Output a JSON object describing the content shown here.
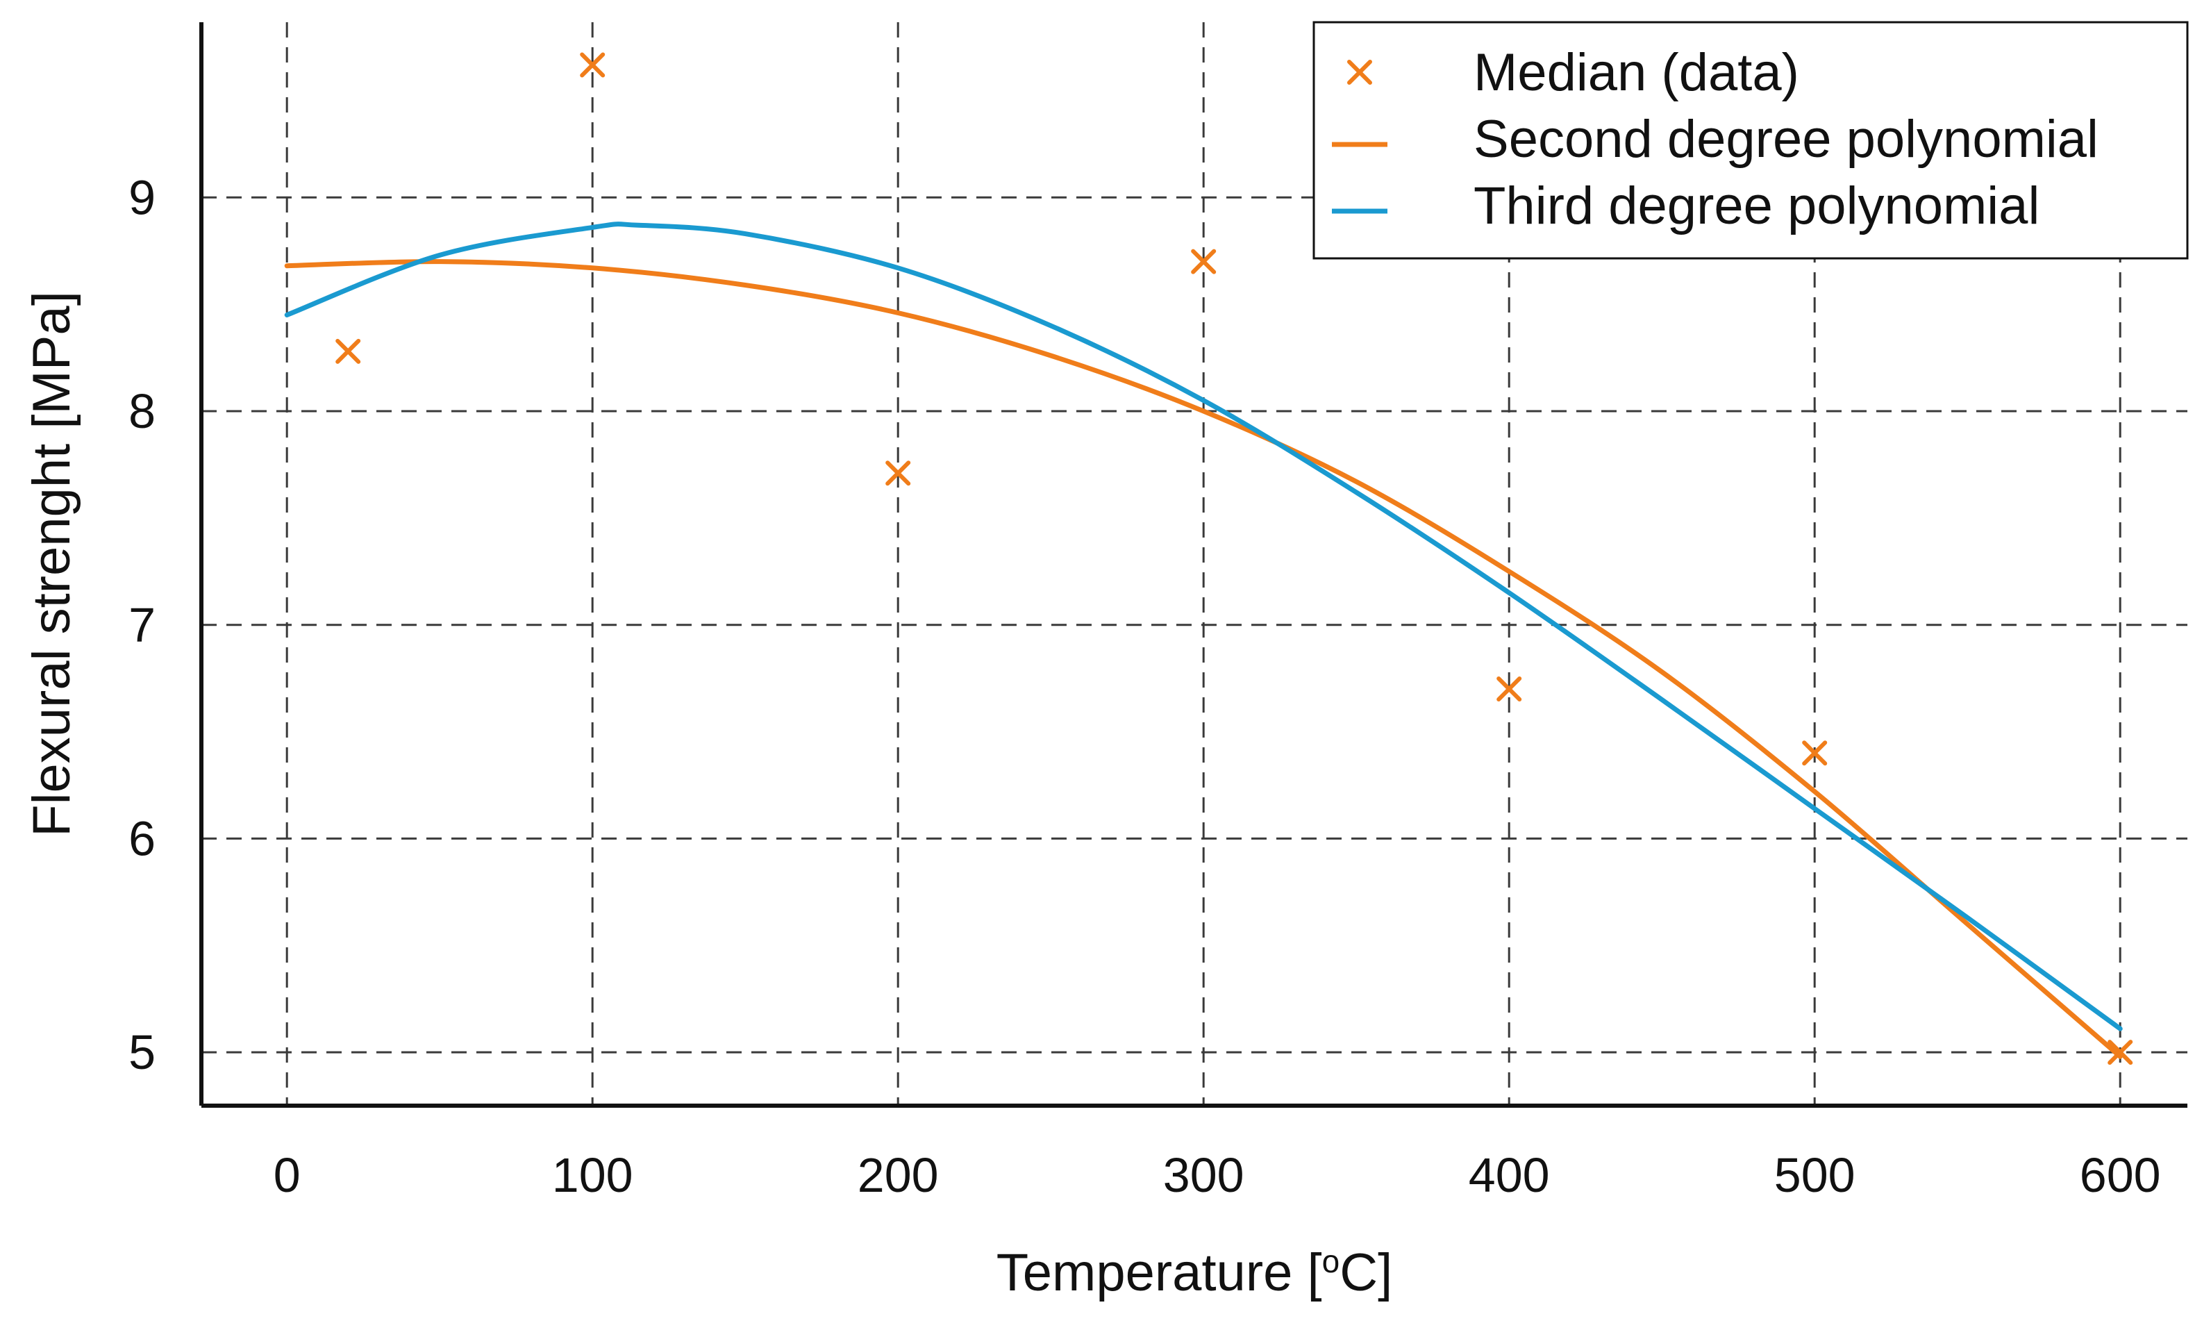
{
  "chart_data": {
    "type": "scatter",
    "xlabel": "Temperature [",
    "xlabel_sup": "o",
    "xlabel_end": "C]",
    "ylabel": "Flexural strenght [MPa]",
    "xlim": [
      -28,
      622
    ],
    "ylim": [
      4.75,
      9.82
    ],
    "xticks": [
      0,
      100,
      200,
      300,
      400,
      500,
      600
    ],
    "yticks": [
      5,
      6,
      7,
      8,
      9
    ],
    "grid": true,
    "legend_position": "top-right",
    "colors": {
      "orange": "#f07d1a",
      "blue": "#1a9ad0"
    },
    "series": [
      {
        "name": "Median (data)",
        "kind": "scatter",
        "color": "#f07d1a",
        "x": [
          20,
          100,
          200,
          300,
          400,
          500,
          600
        ],
        "y": [
          8.28,
          9.62,
          7.71,
          8.7,
          6.7,
          6.4,
          5.0
        ]
      },
      {
        "name": "Second degree polynomial",
        "kind": "line",
        "color": "#f07d1a",
        "x": [
          0,
          50,
          100,
          150,
          200,
          250,
          300,
          350,
          400,
          450,
          500,
          550,
          600
        ],
        "y": [
          8.68,
          8.7,
          8.67,
          8.59,
          8.46,
          8.26,
          8.0,
          7.67,
          7.25,
          6.78,
          6.22,
          5.6,
          4.98
        ]
      },
      {
        "name": "Third degree polynomial",
        "kind": "line",
        "color": "#1a9ad0",
        "x": [
          0,
          50,
          100,
          115,
          150,
          200,
          250,
          300,
          350,
          400,
          450,
          500,
          550,
          600
        ],
        "y": [
          8.45,
          8.73,
          8.86,
          8.87,
          8.83,
          8.67,
          8.4,
          8.05,
          7.62,
          7.15,
          6.65,
          6.14,
          5.63,
          5.11
        ]
      }
    ]
  }
}
